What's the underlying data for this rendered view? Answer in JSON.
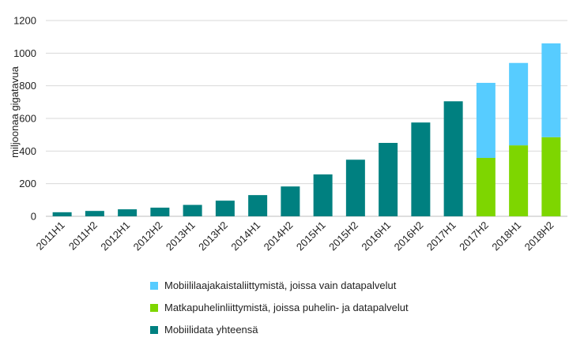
{
  "chart_data": {
    "type": "bar",
    "stacked": true,
    "ylabel": "miljoonaa gigatavua",
    "ylim": [
      0,
      1200
    ],
    "yticks": [
      "0",
      "200",
      "400",
      "600",
      "800",
      "1000",
      "1200"
    ],
    "grid": true,
    "legend_position": "bottom",
    "categories": [
      "2011H1",
      "2011H2",
      "2012H1",
      "2012H2",
      "2013H1",
      "2013H2",
      "2014H1",
      "2014H2",
      "2015H1",
      "2015H2",
      "2016H1",
      "2016H2",
      "2017H1",
      "2017H2",
      "2018H1",
      "2018H2"
    ],
    "series": [
      {
        "name": "Mobiilidata yhteensä",
        "color": "#008080",
        "values": [
          25,
          33,
          43,
          53,
          70,
          96,
          130,
          183,
          257,
          347,
          450,
          575,
          705,
          null,
          null,
          null
        ]
      },
      {
        "name": "Matkapuhelinliittymistä, joissa puhelin- ja datapalvelut",
        "color": "#7ED600",
        "values": [
          null,
          null,
          null,
          null,
          null,
          null,
          null,
          null,
          null,
          null,
          null,
          null,
          null,
          358,
          435,
          485
        ]
      },
      {
        "name": "Mobiililaajakaistaliittymistä, joissa vain datapalvelut",
        "color": "#57CCFF",
        "values": [
          null,
          null,
          null,
          null,
          null,
          null,
          null,
          null,
          null,
          null,
          null,
          null,
          null,
          460,
          505,
          575
        ]
      }
    ]
  },
  "legend": [
    {
      "label": "Mobiililaajakaistaliittymistä, joissa vain datapalvelut",
      "color": "#57CCFF"
    },
    {
      "label": "Matkapuhelinliittymistä, joissa puhelin- ja datapalvelut",
      "color": "#7ED600"
    },
    {
      "label": "Mobiilidata yhteensä",
      "color": "#008080"
    }
  ]
}
